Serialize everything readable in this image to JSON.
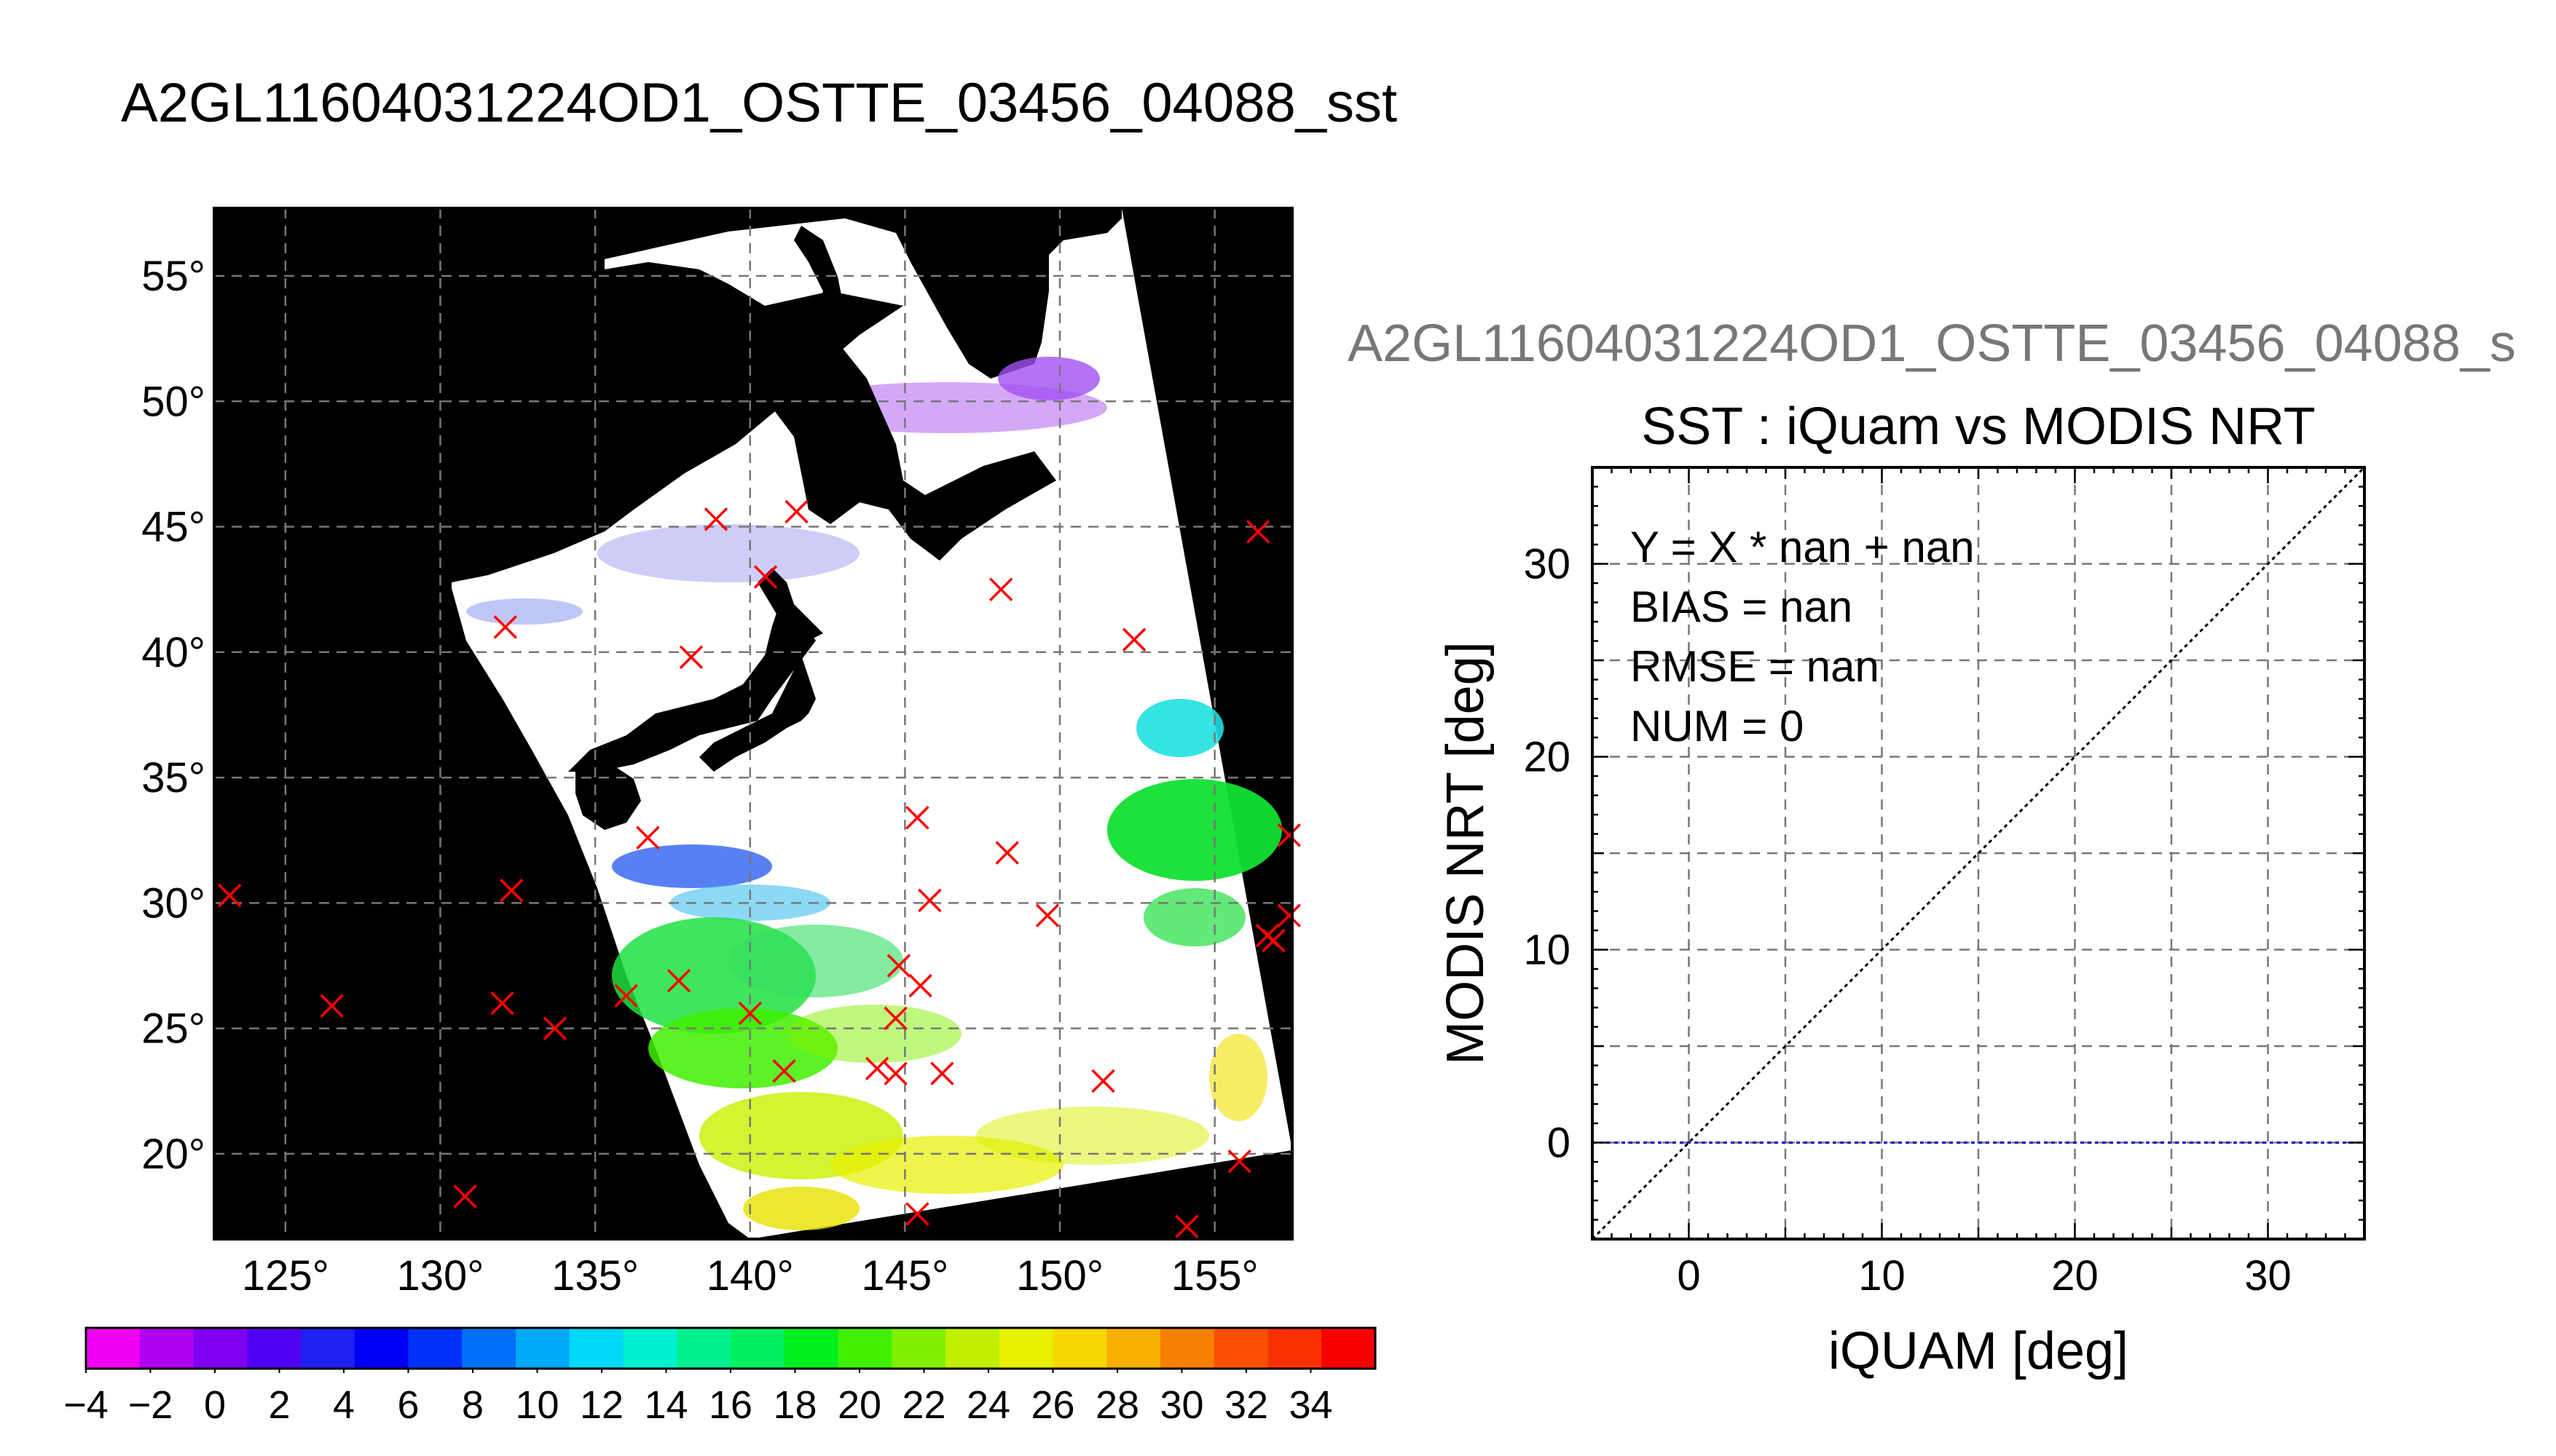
{
  "page_title": "A2GL11604031224OD1_OSTTE_03456_04088_sst",
  "colors": {
    "land": "#000000",
    "nodata": "#ffffff",
    "matchup_marker": "#ff0000",
    "zero_line": "#0000cc"
  },
  "chart_data": [
    {
      "type": "map",
      "title": "",
      "x_ticks": [
        "125°",
        "130°",
        "135°",
        "140°",
        "145°",
        "150°",
        "155°"
      ],
      "x_tick_values": [
        125,
        130,
        135,
        140,
        145,
        150,
        155
      ],
      "y_ticks": [
        "55°",
        "50°",
        "45°",
        "40°",
        "35°",
        "30°",
        "25°",
        "20°"
      ],
      "y_tick_values": [
        55,
        50,
        45,
        40,
        35,
        30,
        25,
        20
      ],
      "xlim": [
        122.7,
        157.5
      ],
      "ylim": [
        16.6,
        57.7
      ],
      "grid": true,
      "markers": [
        {
          "lon": 123.2,
          "lat": 30.3
        },
        {
          "lon": 126.5,
          "lat": 25.9
        },
        {
          "lon": 130.8,
          "lat": 18.3
        },
        {
          "lon": 132.0,
          "lat": 26.0
        },
        {
          "lon": 132.3,
          "lat": 30.5
        },
        {
          "lon": 133.7,
          "lat": 25.0
        },
        {
          "lon": 132.1,
          "lat": 41.0
        },
        {
          "lon": 136.0,
          "lat": 26.3
        },
        {
          "lon": 136.7,
          "lat": 32.6
        },
        {
          "lon": 137.7,
          "lat": 26.9
        },
        {
          "lon": 138.1,
          "lat": 39.8
        },
        {
          "lon": 138.9,
          "lat": 45.3
        },
        {
          "lon": 140.0,
          "lat": 25.6
        },
        {
          "lon": 140.5,
          "lat": 43.0
        },
        {
          "lon": 141.5,
          "lat": 45.6
        },
        {
          "lon": 141.1,
          "lat": 23.3
        },
        {
          "lon": 144.1,
          "lat": 23.4
        },
        {
          "lon": 144.7,
          "lat": 23.2
        },
        {
          "lon": 144.7,
          "lat": 25.4
        },
        {
          "lon": 144.8,
          "lat": 27.5
        },
        {
          "lon": 145.4,
          "lat": 33.4
        },
        {
          "lon": 145.5,
          "lat": 26.7
        },
        {
          "lon": 145.8,
          "lat": 30.1
        },
        {
          "lon": 146.2,
          "lat": 23.2
        },
        {
          "lon": 145.4,
          "lat": 17.6
        },
        {
          "lon": 148.1,
          "lat": 42.5
        },
        {
          "lon": 148.3,
          "lat": 32.0
        },
        {
          "lon": 149.6,
          "lat": 29.5
        },
        {
          "lon": 151.4,
          "lat": 22.9
        },
        {
          "lon": 152.4,
          "lat": 40.5
        },
        {
          "lon": 154.1,
          "lat": 17.1
        },
        {
          "lon": 155.8,
          "lat": 19.7
        },
        {
          "lon": 156.4,
          "lat": 44.8
        },
        {
          "lon": 156.7,
          "lat": 28.7
        },
        {
          "lon": 156.9,
          "lat": 28.5
        },
        {
          "lon": 157.4,
          "lat": 32.7
        },
        {
          "lon": 157.4,
          "lat": 29.5
        }
      ]
    },
    {
      "type": "colorbar",
      "tick_labels": [
        "−4",
        "−2",
        "0",
        "2",
        "4",
        "6",
        "8",
        "10",
        "12",
        "14",
        "16",
        "18",
        "20",
        "22",
        "24",
        "26",
        "28",
        "30",
        "32",
        "34"
      ],
      "min": -4,
      "max": 36,
      "colors": [
        "#f000f0",
        "#b000f0",
        "#8000f0",
        "#5000f0",
        "#2020f0",
        "#0000f8",
        "#0030f8",
        "#0070f8",
        "#00a8f8",
        "#00d8f8",
        "#00f0d0",
        "#00f090",
        "#00f060",
        "#00f020",
        "#40f000",
        "#80f000",
        "#c0f000",
        "#e8f000",
        "#f8d800",
        "#f8b000",
        "#f88000",
        "#f85000",
        "#f83000",
        "#f80000"
      ]
    },
    {
      "type": "scatter",
      "suptitle": "A2GL11604031224OD1_OSTTE_03456_04088_s",
      "title": "SST : iQuam vs MODIS NRT",
      "xlabel": "iQUAM [deg]",
      "ylabel": "MODIS NRT [deg]",
      "xlim": [
        -5,
        35
      ],
      "ylim": [
        -5,
        35
      ],
      "x_ticks": [
        "0",
        "10",
        "20",
        "30"
      ],
      "x_tick_values": [
        0,
        10,
        20,
        30
      ],
      "y_ticks": [
        "0",
        "10",
        "20",
        "30"
      ],
      "y_tick_values": [
        0,
        10,
        20,
        30
      ],
      "grid": true,
      "annotations": [
        "Y = X * nan + nan",
        "BIAS = nan",
        "RMSE = nan",
        "NUM = 0"
      ],
      "lines": [
        {
          "name": "",
          "style": "dotted",
          "color": "#000000",
          "x": [
            -5,
            35
          ],
          "y": [
            -5,
            35
          ]
        },
        {
          "name": "",
          "style": "dotted",
          "color": "#0000cc",
          "x": [
            -5,
            35
          ],
          "y": [
            0,
            0
          ]
        }
      ],
      "points": []
    }
  ]
}
